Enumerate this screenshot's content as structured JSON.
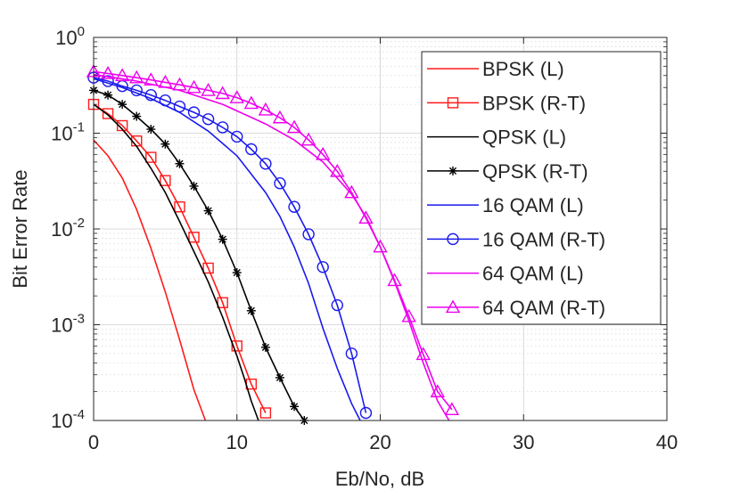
{
  "chart_data": {
    "type": "line",
    "title": "",
    "xlabel": "Eb/No, dB",
    "ylabel": "Bit Error Rate",
    "xlim": [
      0,
      40
    ],
    "ylim": [
      0.0001,
      1
    ],
    "yscale": "log",
    "grid": true,
    "minor_grid": true,
    "legend_position": "top-right",
    "x_ticks": [
      0,
      10,
      20,
      30,
      40
    ],
    "y_ticks": [
      {
        "value": 1,
        "base": "10",
        "exp": "0"
      },
      {
        "value": 0.1,
        "base": "10",
        "exp": "-1"
      },
      {
        "value": 0.01,
        "base": "10",
        "exp": "-2"
      },
      {
        "value": 0.001,
        "base": "10",
        "exp": "-3"
      },
      {
        "value": 0.0001,
        "base": "10",
        "exp": "-4"
      }
    ],
    "series": [
      {
        "name": "BPSK (L)",
        "color": "#ff1a1a",
        "marker": "none",
        "x": [
          0,
          1,
          2,
          3,
          4,
          5,
          6,
          7,
          7.8
        ],
        "y": [
          0.085,
          0.058,
          0.034,
          0.016,
          0.0063,
          0.0022,
          0.0007,
          0.00021,
          0.0001
        ]
      },
      {
        "name": "BPSK (R-T)",
        "color": "#ff1a1a",
        "marker": "square",
        "x": [
          0,
          1,
          2,
          3,
          4,
          5,
          6,
          7,
          8,
          9,
          10,
          11,
          12
        ],
        "y": [
          0.2,
          0.16,
          0.12,
          0.083,
          0.056,
          0.032,
          0.017,
          0.0082,
          0.0039,
          0.0017,
          0.0006,
          0.00024,
          0.00012
        ]
      },
      {
        "name": "QPSK (L)",
        "color": "#000000",
        "marker": "none",
        "x": [
          0,
          1,
          2,
          3,
          4,
          5,
          6,
          7,
          8,
          9,
          10,
          10.5,
          11,
          11.5
        ],
        "y": [
          0.2,
          0.155,
          0.11,
          0.073,
          0.043,
          0.024,
          0.012,
          0.0058,
          0.0028,
          0.0012,
          0.00047,
          0.00028,
          0.00016,
          0.0001
        ]
      },
      {
        "name": "QPSK (R-T)",
        "color": "#000000",
        "marker": "star",
        "x": [
          0,
          1,
          2,
          3,
          4,
          5,
          6,
          7,
          8,
          9,
          10,
          11,
          12,
          13,
          14,
          14.7
        ],
        "y": [
          0.28,
          0.25,
          0.2,
          0.15,
          0.11,
          0.077,
          0.048,
          0.028,
          0.0155,
          0.0078,
          0.0035,
          0.0014,
          0.00058,
          0.00028,
          0.00014,
          0.0001
        ]
      },
      {
        "name": "16 QAM (L)",
        "color": "#1a1aee",
        "marker": "none",
        "x": [
          0,
          2,
          4,
          6,
          8,
          10,
          12,
          13,
          14,
          15,
          16,
          17,
          18,
          18.6
        ],
        "y": [
          0.37,
          0.3,
          0.23,
          0.165,
          0.105,
          0.058,
          0.024,
          0.0135,
          0.0065,
          0.0027,
          0.00092,
          0.00035,
          0.00015,
          0.0001
        ]
      },
      {
        "name": "16 QAM (R-T)",
        "color": "#1a1aee",
        "marker": "circle",
        "x": [
          0,
          1,
          2,
          3,
          4,
          5,
          6,
          7,
          8,
          9,
          10,
          11,
          12,
          13,
          14,
          15,
          16,
          17,
          18,
          19
        ],
        "y": [
          0.38,
          0.35,
          0.31,
          0.28,
          0.25,
          0.22,
          0.19,
          0.165,
          0.14,
          0.115,
          0.092,
          0.068,
          0.048,
          0.03,
          0.017,
          0.0088,
          0.004,
          0.0016,
          0.0005,
          0.00012
        ]
      },
      {
        "name": "64 QAM (L)",
        "color": "#ee00ee",
        "marker": "none",
        "x": [
          0,
          3,
          6,
          9,
          12,
          14,
          16,
          18,
          19,
          20,
          21,
          22,
          23,
          24,
          24.8
        ],
        "y": [
          0.41,
          0.35,
          0.28,
          0.2,
          0.125,
          0.085,
          0.05,
          0.023,
          0.0135,
          0.0065,
          0.0028,
          0.0011,
          0.0004,
          0.00016,
          0.0001
        ]
      },
      {
        "name": "64 QAM (R-T)",
        "color": "#ee00ee",
        "marker": "triangle",
        "x": [
          0,
          1,
          2,
          3,
          4,
          5,
          6,
          7,
          8,
          9,
          10,
          11,
          12,
          13,
          14,
          15,
          16,
          17,
          18,
          19,
          20,
          21,
          22,
          23,
          24,
          25
        ],
        "y": [
          0.44,
          0.42,
          0.4,
          0.38,
          0.36,
          0.34,
          0.32,
          0.3,
          0.28,
          0.26,
          0.235,
          0.205,
          0.175,
          0.145,
          0.115,
          0.085,
          0.06,
          0.04,
          0.024,
          0.013,
          0.0065,
          0.0029,
          0.00122,
          0.00049,
          0.0002,
          0.00013
        ]
      }
    ]
  }
}
